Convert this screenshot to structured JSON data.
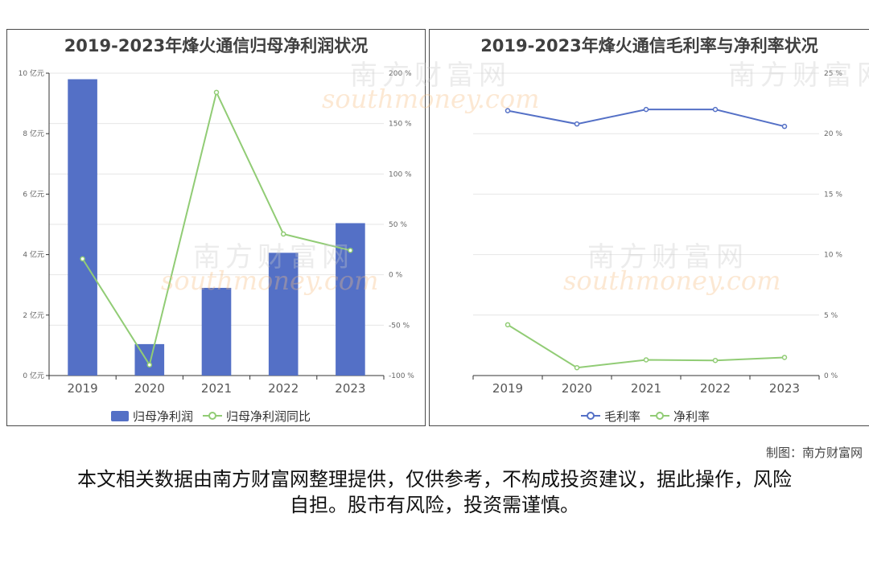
{
  "charts": {
    "left": {
      "title": "2019-2023年烽火通信归母净利润状况",
      "legend": [
        "归母净利润",
        "归母净利润同比"
      ]
    },
    "right": {
      "title": "2019-2023年烽火通信毛利率与净利率状况",
      "legend": [
        "毛利率",
        "净利率"
      ]
    }
  },
  "chart_data": [
    {
      "type": "bar+line",
      "categories": [
        "2019",
        "2020",
        "2021",
        "2022",
        "2023"
      ],
      "series": [
        {
          "name": "归母净利润",
          "type": "bar",
          "axis": "left",
          "values": [
            9.8,
            1.04,
            2.9,
            4.06,
            5.04
          ]
        },
        {
          "name": "归母净利润同比",
          "type": "line",
          "axis": "right",
          "values": [
            15.8,
            -89.4,
            181.0,
            40.4,
            24.2
          ]
        }
      ],
      "y_left": {
        "min": 0,
        "max": 10,
        "ticks": [
          "0 亿元",
          "2 亿元",
          "4 亿元",
          "6 亿元",
          "8 亿元",
          "10 亿元"
        ]
      },
      "y_right": {
        "min": -100,
        "max": 200,
        "ticks": [
          "-100 %",
          "-50 %",
          "0 %",
          "50 %",
          "100 %",
          "150 %",
          "200 %"
        ]
      },
      "grid": true,
      "legend_position": "bottom"
    },
    {
      "type": "line",
      "categories": [
        "2019",
        "2020",
        "2021",
        "2022",
        "2023"
      ],
      "series": [
        {
          "name": "毛利率",
          "values": [
            21.9,
            20.8,
            22.0,
            22.0,
            20.6
          ]
        },
        {
          "name": "净利率",
          "values": [
            4.2,
            0.65,
            1.3,
            1.25,
            1.5
          ]
        }
      ],
      "y_right": {
        "min": 0,
        "max": 25,
        "ticks": [
          "0 %",
          "5 %",
          "10 %",
          "15 %",
          "20 %",
          "25 %"
        ]
      },
      "grid": true,
      "legend_position": "bottom"
    }
  ],
  "colors": {
    "bar": "#5470c6",
    "line_green": "#91cc75",
    "line_blue": "#5470c6"
  },
  "watermark": {
    "cn": "南方财富网",
    "en": "southmoney.com"
  },
  "footer": {
    "credit": "制图：南方财富网",
    "disclaimer": "本文相关数据由南方财富网整理提供，仅供参考，不构成投资建议，据此操作，风险自担。股市有风险，投资需谨慎。"
  }
}
